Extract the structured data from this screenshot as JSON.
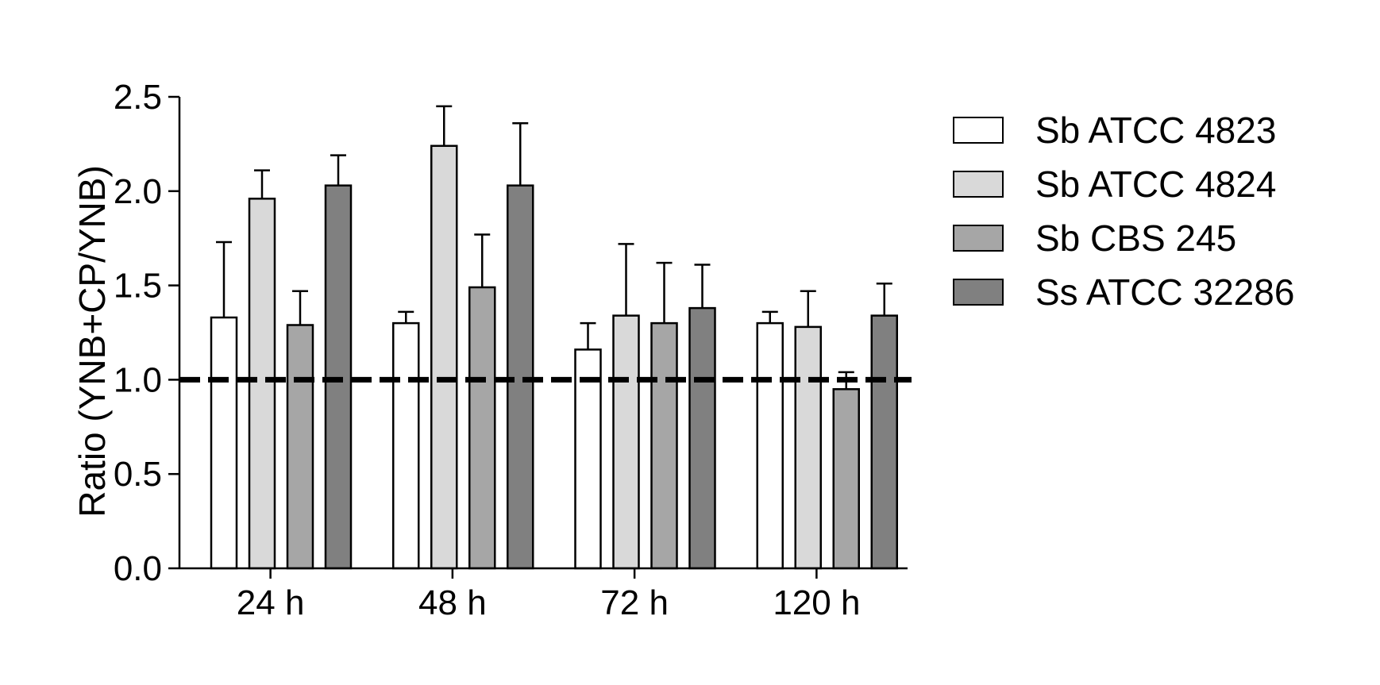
{
  "chart_data": {
    "type": "bar",
    "title": "",
    "xlabel": "",
    "ylabel": "Ratio (YNB+CP/YNB)",
    "ylim": [
      0,
      2.5
    ],
    "yticks": [
      "0.0",
      "0.5",
      "1.0",
      "1.5",
      "2.0",
      "2.5"
    ],
    "categories": [
      "24 h",
      "48 h",
      "72 h",
      "120 h"
    ],
    "reference_line": {
      "y": 1.0,
      "style": "dashed"
    },
    "legend_position": "right",
    "series": [
      {
        "name": "Sb ATCC 4823",
        "color": "#ffffff",
        "values": [
          1.33,
          1.3,
          1.16,
          1.3
        ],
        "errors": [
          0.4,
          0.06,
          0.14,
          0.06
        ]
      },
      {
        "name": "Sb ATCC 4824",
        "color": "#d9d9d9",
        "values": [
          1.96,
          2.24,
          1.34,
          1.28
        ],
        "errors": [
          0.15,
          0.21,
          0.38,
          0.19
        ]
      },
      {
        "name": "Sb CBS 245",
        "color": "#a6a6a6",
        "values": [
          1.29,
          1.49,
          1.3,
          0.95
        ],
        "errors": [
          0.18,
          0.28,
          0.32,
          0.09
        ]
      },
      {
        "name": "Ss ATCC 32286",
        "color": "#808080",
        "values": [
          2.03,
          2.03,
          1.38,
          1.34
        ],
        "errors": [
          0.16,
          0.33,
          0.23,
          0.17
        ]
      }
    ]
  }
}
